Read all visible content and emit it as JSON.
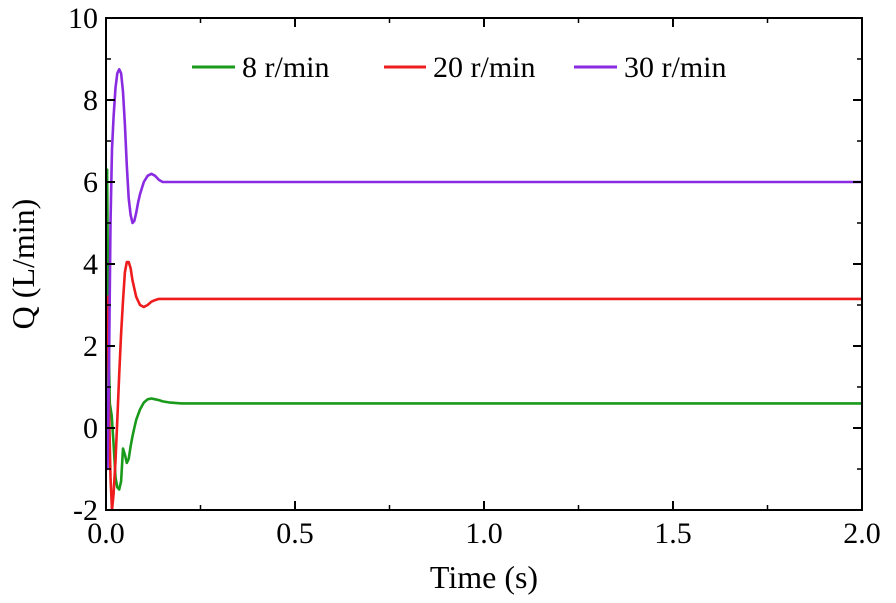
{
  "chart_data": {
    "type": "line",
    "xlabel": "Time (s)",
    "ylabel": "Q (L/min)",
    "xlim": [
      0,
      2.0
    ],
    "ylim": [
      -2,
      10
    ],
    "xticks": [
      "0.0",
      "0.5",
      "1.0",
      "1.5",
      "2.0"
    ],
    "yticks": [
      "-2",
      "0",
      "2",
      "4",
      "6",
      "8",
      "10"
    ],
    "grid": false,
    "legend": {
      "placement": "top-center",
      "orientation": "horizontal"
    },
    "series": [
      {
        "name": "8 r/min",
        "color": "#1a9a1a",
        "x": [
          0,
          0.003,
          0.006,
          0.01,
          0.015,
          0.02,
          0.025,
          0.03,
          0.035,
          0.04,
          0.045,
          0.05,
          0.055,
          0.06,
          0.065,
          0.07,
          0.075,
          0.08,
          0.09,
          0.1,
          0.11,
          0.12,
          0.13,
          0.14,
          0.15,
          0.17,
          0.2,
          0.3,
          0.5,
          1.0,
          1.5,
          2.0
        ],
        "y": [
          0.8,
          6.3,
          2.5,
          0.6,
          0.3,
          -0.4,
          -1.2,
          -1.45,
          -1.5,
          -1.3,
          -0.5,
          -0.65,
          -0.85,
          -0.75,
          -0.45,
          -0.2,
          0.0,
          0.2,
          0.45,
          0.62,
          0.7,
          0.72,
          0.7,
          0.68,
          0.65,
          0.62,
          0.6,
          0.6,
          0.6,
          0.6,
          0.6,
          0.6
        ]
      },
      {
        "name": "20 r/min",
        "color": "#ee1c1c",
        "x": [
          0,
          0.004,
          0.008,
          0.012,
          0.016,
          0.02,
          0.025,
          0.03,
          0.035,
          0.04,
          0.045,
          0.05,
          0.055,
          0.06,
          0.065,
          0.07,
          0.08,
          0.09,
          0.1,
          0.11,
          0.12,
          0.13,
          0.14,
          0.15,
          0.17,
          0.2,
          0.3,
          0.5,
          1.0,
          1.5,
          2.0
        ],
        "y": [
          2.0,
          3.2,
          0.5,
          -1.2,
          -2.0,
          -1.6,
          -0.8,
          0.2,
          1.3,
          2.3,
          3.1,
          3.8,
          4.05,
          4.05,
          3.9,
          3.6,
          3.2,
          3.0,
          2.95,
          3.0,
          3.08,
          3.12,
          3.15,
          3.15,
          3.15,
          3.15,
          3.15,
          3.15,
          3.15,
          3.15,
          3.15
        ]
      },
      {
        "name": "30 r/min",
        "color": "#8a2be2",
        "x": [
          0,
          0.004,
          0.008,
          0.012,
          0.016,
          0.02,
          0.025,
          0.03,
          0.035,
          0.04,
          0.045,
          0.05,
          0.055,
          0.06,
          0.065,
          0.07,
          0.075,
          0.08,
          0.085,
          0.09,
          0.1,
          0.11,
          0.12,
          0.13,
          0.14,
          0.15,
          0.17,
          0.2,
          0.3,
          0.5,
          1.0,
          1.5,
          2.0
        ],
        "y": [
          1.0,
          -1.0,
          1.5,
          5.0,
          6.8,
          7.6,
          8.3,
          8.65,
          8.75,
          8.65,
          8.2,
          7.4,
          6.4,
          5.6,
          5.2,
          5.0,
          5.05,
          5.25,
          5.5,
          5.7,
          6.0,
          6.15,
          6.2,
          6.15,
          6.05,
          6.0,
          6.0,
          6.0,
          6.0,
          6.0,
          6.0,
          6.0,
          6.0
        ]
      }
    ]
  }
}
